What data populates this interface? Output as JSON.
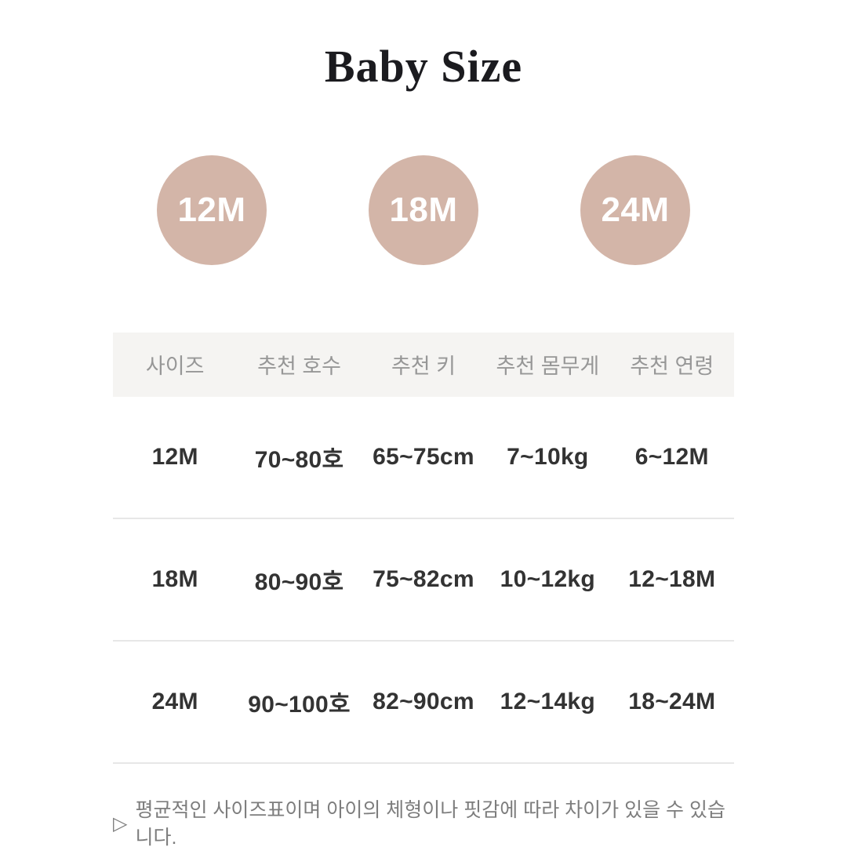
{
  "page": {
    "title": "Baby Size"
  },
  "badges": [
    "12M",
    "18M",
    "24M"
  ],
  "table": {
    "headers": [
      "사이즈",
      "추천 호수",
      "추천 키",
      "추천 몸무게",
      "추천 연령"
    ],
    "rows": [
      [
        "12M",
        "70~80호",
        "65~75cm",
        "7~10kg",
        "6~12M"
      ],
      [
        "18M",
        "80~90호",
        "75~82cm",
        "10~12kg",
        "12~18M"
      ],
      [
        "24M",
        "90~100호",
        "82~90cm",
        "12~14kg",
        "18~24M"
      ]
    ]
  },
  "note": {
    "icon": "▷",
    "text": "평균적인 사이즈표이며 아이의 체형이나 핏감에 따라 차이가 있을 수 있습니다."
  },
  "colors": {
    "badge": "#d3b5a8",
    "badge_text": "#ffffff",
    "header_bg": "#f5f4f2",
    "header_text": "#979797",
    "cell_text": "#333333",
    "divider": "#e7e7e7",
    "note_text": "#7d7d7d",
    "title_text": "#1b1b1f",
    "background": "#ffffff"
  }
}
